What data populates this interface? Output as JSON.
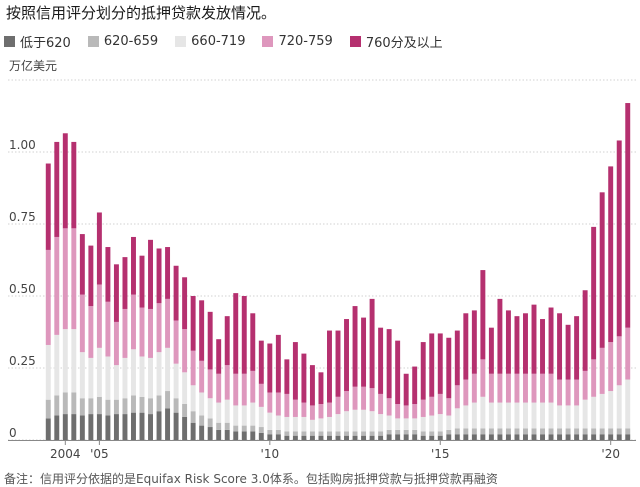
{
  "title": "按照信用评分划分的抵押贷款发放情况。",
  "footnote": "备注：信用评分依据的是Equifax Risk Score 3.0体系。包括购房抵押贷款与抵押贷款再融资",
  "colors": [
    "#6e6e6e",
    "#b9b9b9",
    "#e6e6e6",
    "#de97bd",
    "#b5306f"
  ],
  "chart_data": {
    "type": "bar",
    "stacked": true,
    "unit": "万亿美元",
    "yticks": [
      "0",
      "0.25",
      "0.50",
      "0.75",
      "1.00",
      "1.25"
    ],
    "ylim": [
      0,
      1.25
    ],
    "xticks": [
      {
        "label": "2004",
        "index": 2
      },
      {
        "label": "'05",
        "index": 6
      },
      {
        "label": "'10",
        "index": 26
      },
      {
        "label": "'15",
        "index": 46
      },
      {
        "label": "'20",
        "index": 66
      }
    ],
    "grid": true,
    "legend_position": "top",
    "n_bars": 69,
    "series": [
      {
        "name": "低于620",
        "values": [
          0.075,
          0.085,
          0.09,
          0.09,
          0.085,
          0.09,
          0.09,
          0.085,
          0.09,
          0.09,
          0.095,
          0.095,
          0.09,
          0.1,
          0.11,
          0.095,
          0.08,
          0.06,
          0.05,
          0.045,
          0.035,
          0.035,
          0.03,
          0.03,
          0.03,
          0.025,
          0.02,
          0.02,
          0.015,
          0.015,
          0.015,
          0.015,
          0.015,
          0.015,
          0.015,
          0.015,
          0.015,
          0.015,
          0.015,
          0.015,
          0.02,
          0.02,
          0.02,
          0.02,
          0.015,
          0.015,
          0.015,
          0.02,
          0.02,
          0.02,
          0.02,
          0.02,
          0.02,
          0.02,
          0.02,
          0.02,
          0.02,
          0.02,
          0.02,
          0.02,
          0.02,
          0.02,
          0.02,
          0.02,
          0.02,
          0.02,
          0.02,
          0.02,
          0.02
        ]
      },
      {
        "name": "620-659",
        "values": [
          0.065,
          0.07,
          0.075,
          0.075,
          0.06,
          0.055,
          0.06,
          0.055,
          0.05,
          0.055,
          0.06,
          0.055,
          0.055,
          0.055,
          0.06,
          0.05,
          0.045,
          0.04,
          0.035,
          0.03,
          0.025,
          0.025,
          0.02,
          0.02,
          0.02,
          0.02,
          0.015,
          0.015,
          0.015,
          0.015,
          0.015,
          0.015,
          0.015,
          0.015,
          0.015,
          0.015,
          0.015,
          0.015,
          0.015,
          0.015,
          0.015,
          0.015,
          0.015,
          0.015,
          0.015,
          0.015,
          0.015,
          0.015,
          0.02,
          0.02,
          0.02,
          0.02,
          0.02,
          0.02,
          0.02,
          0.02,
          0.02,
          0.02,
          0.02,
          0.02,
          0.02,
          0.02,
          0.02,
          0.02,
          0.02,
          0.02,
          0.02,
          0.02,
          0.02
        ]
      },
      {
        "name": "660-719",
        "values": [
          0.19,
          0.21,
          0.22,
          0.22,
          0.16,
          0.14,
          0.17,
          0.15,
          0.12,
          0.14,
          0.16,
          0.14,
          0.14,
          0.15,
          0.15,
          0.12,
          0.11,
          0.09,
          0.08,
          0.07,
          0.07,
          0.08,
          0.07,
          0.07,
          0.08,
          0.07,
          0.06,
          0.05,
          0.05,
          0.05,
          0.05,
          0.04,
          0.045,
          0.05,
          0.06,
          0.07,
          0.075,
          0.075,
          0.07,
          0.06,
          0.05,
          0.04,
          0.04,
          0.04,
          0.05,
          0.055,
          0.06,
          0.05,
          0.07,
          0.08,
          0.09,
          0.11,
          0.09,
          0.09,
          0.09,
          0.09,
          0.09,
          0.09,
          0.09,
          0.09,
          0.08,
          0.08,
          0.08,
          0.1,
          0.11,
          0.12,
          0.13,
          0.15,
          0.17
        ]
      },
      {
        "name": "720-759",
        "values": [
          0.33,
          0.34,
          0.35,
          0.35,
          0.2,
          0.18,
          0.22,
          0.19,
          0.15,
          0.17,
          0.19,
          0.17,
          0.17,
          0.17,
          0.17,
          0.15,
          0.15,
          0.12,
          0.11,
          0.1,
          0.1,
          0.12,
          0.11,
          0.11,
          0.11,
          0.08,
          0.07,
          0.08,
          0.08,
          0.06,
          0.05,
          0.05,
          0.05,
          0.05,
          0.06,
          0.07,
          0.08,
          0.08,
          0.08,
          0.07,
          0.06,
          0.05,
          0.045,
          0.05,
          0.06,
          0.065,
          0.07,
          0.06,
          0.08,
          0.09,
          0.1,
          0.13,
          0.1,
          0.1,
          0.1,
          0.1,
          0.1,
          0.1,
          0.1,
          0.1,
          0.09,
          0.09,
          0.09,
          0.1,
          0.13,
          0.16,
          0.17,
          0.17,
          0.18
        ]
      },
      {
        "name": "760分及以上",
        "values": [
          0.3,
          0.33,
          0.33,
          0.3,
          0.21,
          0.21,
          0.25,
          0.19,
          0.2,
          0.18,
          0.2,
          0.18,
          0.24,
          0.19,
          0.18,
          0.19,
          0.18,
          0.19,
          0.21,
          0.2,
          0.12,
          0.17,
          0.28,
          0.27,
          0.2,
          0.15,
          0.17,
          0.2,
          0.12,
          0.2,
          0.17,
          0.14,
          0.11,
          0.25,
          0.23,
          0.25,
          0.28,
          0.24,
          0.31,
          0.23,
          0.24,
          0.22,
          0.11,
          0.13,
          0.2,
          0.22,
          0.21,
          0.21,
          0.19,
          0.23,
          0.22,
          0.31,
          0.16,
          0.26,
          0.22,
          0.2,
          0.21,
          0.24,
          0.19,
          0.23,
          0.23,
          0.19,
          0.22,
          0.28,
          0.46,
          0.54,
          0.61,
          0.68,
          0.78
        ]
      }
    ]
  }
}
